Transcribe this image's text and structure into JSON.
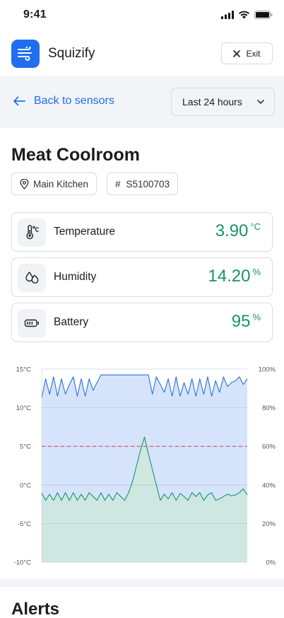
{
  "status_bar": {
    "time": "9:41"
  },
  "header": {
    "app_name": "Squizify",
    "exit_label": "Exit"
  },
  "toolbar": {
    "back_label": "Back to sensors",
    "range_value": "Last 24 hours"
  },
  "sensor": {
    "title": "Meat Coolroom",
    "location": "Main Kitchen",
    "serial_prefix": "#",
    "serial": "S5100703"
  },
  "metrics": [
    {
      "label": "Temperature",
      "value": "3.90",
      "unit": "°C",
      "icon": "thermometer-icon"
    },
    {
      "label": "Humidity",
      "value": "14.20",
      "unit": "%",
      "icon": "droplets-icon"
    },
    {
      "label": "Battery",
      "value": "95",
      "unit": "%",
      "icon": "battery-icon"
    }
  ],
  "colors": {
    "accent": "#1f6fef",
    "value_green": "#17946c",
    "humidity_fill": "#d6e4fb",
    "temp_fill": "#cde7df",
    "threshold": "#e23b4e"
  },
  "chart_data": {
    "type": "area",
    "left_axis": {
      "ticks": [
        "15°C",
        "10°C",
        "5°C",
        "0°C",
        "-5°C",
        "-10°C"
      ],
      "range": [
        -10,
        15
      ]
    },
    "right_axis": {
      "ticks": [
        "100%",
        "80%",
        "60%",
        "40%",
        "20%",
        "0%"
      ],
      "range": [
        0,
        100
      ]
    },
    "threshold": 5,
    "series": [
      {
        "axis": "right",
        "values": [
          85,
          95,
          87,
          96,
          86,
          95,
          87,
          92,
          96,
          86,
          95,
          86,
          95,
          89,
          93,
          97,
          97,
          97,
          97,
          97,
          97,
          97,
          97,
          97,
          97,
          97,
          97,
          97,
          87,
          96,
          92,
          88,
          95,
          86,
          96,
          86,
          93,
          87,
          95,
          86,
          95,
          87,
          96,
          86,
          94,
          88,
          96,
          91,
          93,
          94,
          96,
          92,
          95
        ]
      },
      {
        "axis": "left",
        "values": [
          -1,
          -2,
          -1.2,
          -2,
          -1,
          -2,
          -1,
          -2,
          -1,
          -2,
          -1.2,
          -2,
          -1,
          -1.5,
          -2,
          -1,
          -2,
          -1.2,
          -2,
          -1,
          -1.5,
          -2,
          -1,
          0.5,
          2.5,
          4.5,
          6.2,
          4,
          2,
          0,
          -2,
          -1.2,
          -1.8,
          -1,
          -2,
          -1.1,
          -1.5,
          -2,
          -1,
          -1.5,
          -1,
          -2,
          -1.3,
          -1,
          -2,
          -1.8,
          -1.5,
          -1.2,
          -1.4,
          -1.3,
          -1,
          -0.5,
          -1.3
        ]
      }
    ]
  },
  "alerts": {
    "title": "Alerts"
  }
}
